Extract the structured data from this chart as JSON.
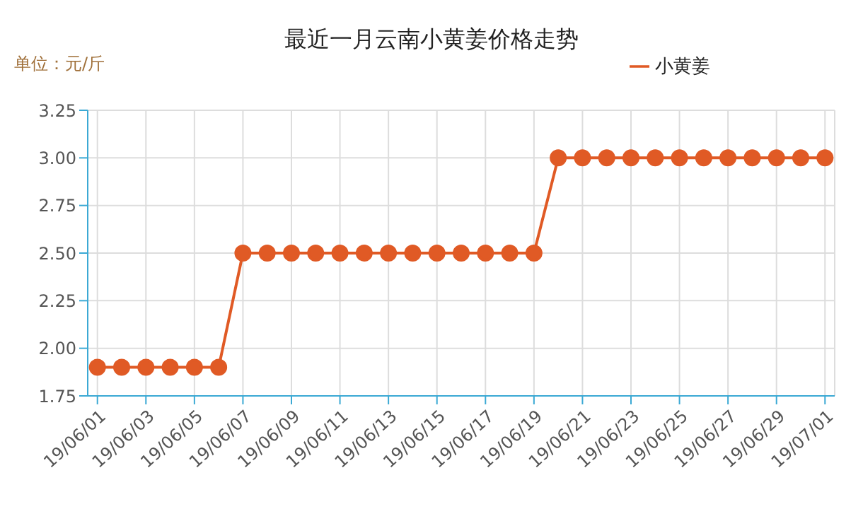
{
  "chart_data": {
    "type": "line",
    "title": "最近一月云南小黄姜价格走势",
    "ylabel": "单位：元/斤",
    "categories": [
      "19/06/01",
      null,
      "19/06/03",
      null,
      "19/06/05",
      null,
      "19/06/07",
      null,
      "19/06/09",
      null,
      "19/06/11",
      null,
      "19/06/13",
      null,
      "19/06/15",
      null,
      "19/06/17",
      null,
      "19/06/19",
      null,
      "19/06/21",
      null,
      "19/06/23",
      null,
      "19/06/25",
      null,
      "19/06/27",
      null,
      "19/06/29",
      null,
      "19/07/01"
    ],
    "series": [
      {
        "name": "小黄姜",
        "color": "#e05a25",
        "values": [
          1.9,
          1.9,
          1.9,
          1.9,
          1.9,
          1.9,
          2.5,
          2.5,
          2.5,
          2.5,
          2.5,
          2.5,
          2.5,
          2.5,
          2.5,
          2.5,
          2.5,
          2.5,
          2.5,
          3.0,
          3.0,
          3.0,
          3.0,
          3.0,
          3.0,
          3.0,
          3.0,
          3.0,
          3.0,
          3.0,
          3.0
        ]
      }
    ],
    "ylim": [
      1.75,
      3.25
    ],
    "yticks": [
      1.75,
      {
        "value": 2,
        "label": "2.00"
      },
      2.25,
      {
        "value": 2.5,
        "label": "2.50"
      },
      2.75,
      {
        "value": 3,
        "label": "3.00"
      },
      3.25
    ],
    "grid": true,
    "legend": "top right",
    "marker": "circle",
    "line_style": "solid"
  }
}
